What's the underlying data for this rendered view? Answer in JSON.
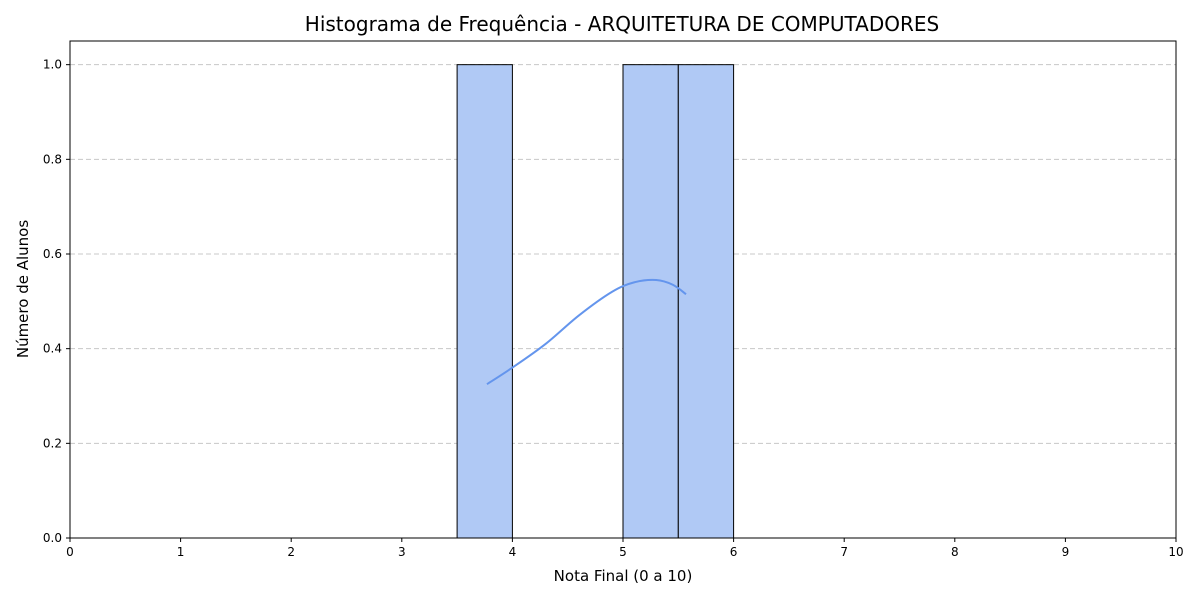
{
  "chart_data": {
    "type": "bar",
    "title": "Histograma de Frequência - ARQUITETURA DE COMPUTADORES",
    "xlabel": "Nota Final (0 a 10)",
    "ylabel": "Número de Alunos",
    "xlim": [
      0,
      10
    ],
    "ylim": [
      0,
      1.05
    ],
    "xticks": [
      0,
      1,
      2,
      3,
      4,
      5,
      6,
      7,
      8,
      9,
      10
    ],
    "yticks": [
      0.0,
      0.2,
      0.4,
      0.6,
      0.8,
      1.0
    ],
    "ytick_labels": [
      "0.0",
      "0.2",
      "0.4",
      "0.6",
      "0.8",
      "1.0"
    ],
    "grid": "y-dashed",
    "bins": [
      {
        "start": 3.5,
        "end": 4.0,
        "count": 1
      },
      {
        "start": 5.0,
        "end": 5.5,
        "count": 1
      },
      {
        "start": 5.5,
        "end": 6.0,
        "count": 1
      }
    ],
    "kde_curve": {
      "x": [
        3.77,
        4.0,
        4.3,
        4.6,
        4.9,
        5.1,
        5.3,
        5.45,
        5.57
      ],
      "y": [
        0.325,
        0.36,
        0.41,
        0.47,
        0.52,
        0.54,
        0.545,
        0.535,
        0.515
      ]
    },
    "colors": {
      "bar_fill": "#b0c9f5",
      "bar_edge": "#000000",
      "kde_line": "#6495ed",
      "grid": "#c8c8c8"
    }
  }
}
